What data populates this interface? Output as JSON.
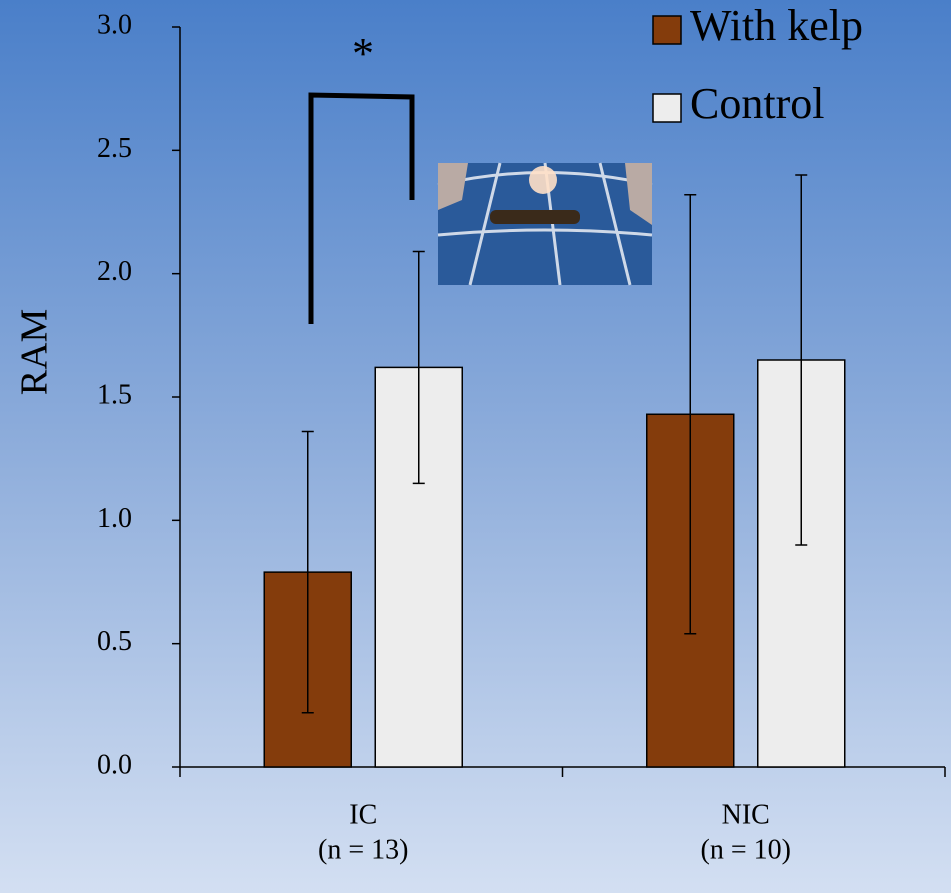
{
  "chart_data": {
    "type": "bar",
    "ylabel": "RAM",
    "categories": [
      "IC",
      "NIC"
    ],
    "category_sublabels": [
      "(n = 13)",
      "(n = 10)"
    ],
    "series": [
      {
        "name": "With kelp",
        "color": "#843c0c",
        "values": [
          0.79,
          1.43
        ],
        "errors": [
          0.57,
          0.89
        ]
      },
      {
        "name": "Control",
        "color": "#ededed",
        "values": [
          1.62,
          1.65
        ],
        "errors": [
          0.47,
          0.75
        ]
      }
    ],
    "ylim": [
      0,
      3
    ],
    "yticks": [
      {
        "value": 0,
        "label": "0.0"
      },
      0.5,
      {
        "value": 1,
        "label": "1.0"
      },
      1.5,
      {
        "value": 2,
        "label": "2.0"
      },
      2.5,
      {
        "value": 3,
        "label": "3.0"
      }
    ],
    "annotation": "*",
    "legend_position": "upper right"
  }
}
